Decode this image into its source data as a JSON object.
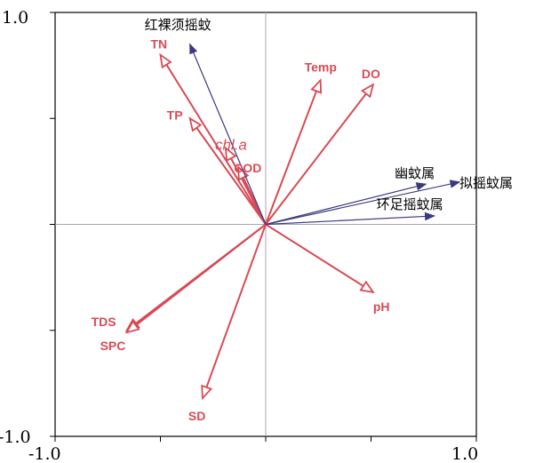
{
  "chart_data": {
    "type": "scatter",
    "title": "",
    "xlabel": "",
    "ylabel": "",
    "xlim": [
      -1.0,
      1.0
    ],
    "ylim": [
      -1.0,
      1.0
    ],
    "x_tick_labels": [
      "-1.0",
      "1.0"
    ],
    "y_tick_labels": [
      "1.0",
      "-1.0"
    ],
    "grid": false,
    "colors": {
      "env": "#d94a55",
      "species": "#3a3a80",
      "axis": "#000000",
      "zero_line": "#aaaaaa"
    },
    "series": [
      {
        "group": "env",
        "vectors": [
          {
            "label": "TN",
            "x": -0.5,
            "y": 0.8
          },
          {
            "label": "TP",
            "x": -0.36,
            "y": 0.5
          },
          {
            "label": "chl.a",
            "x": -0.19,
            "y": 0.36
          },
          {
            "label": "COD",
            "x": -0.13,
            "y": 0.27
          },
          {
            "label": "Temp",
            "x": 0.26,
            "y": 0.68
          },
          {
            "label": "DO",
            "x": 0.51,
            "y": 0.66
          },
          {
            "label": "pH",
            "x": 0.51,
            "y": -0.32
          },
          {
            "label": "TDS",
            "x": -0.66,
            "y": -0.5
          },
          {
            "label": "SPC",
            "x": -0.66,
            "y": -0.51
          },
          {
            "label": "SD",
            "x": -0.3,
            "y": -0.82
          }
        ]
      },
      {
        "group": "species",
        "vectors": [
          {
            "label": "红裸须摇蚊",
            "x": -0.36,
            "y": 0.85
          },
          {
            "label": "幽蚊属",
            "x": 0.76,
            "y": 0.19
          },
          {
            "label": "拟摇蚊属",
            "x": 0.92,
            "y": 0.2
          },
          {
            "label": "环足摇蚊属",
            "x": 0.8,
            "y": 0.04
          }
        ]
      }
    ]
  }
}
